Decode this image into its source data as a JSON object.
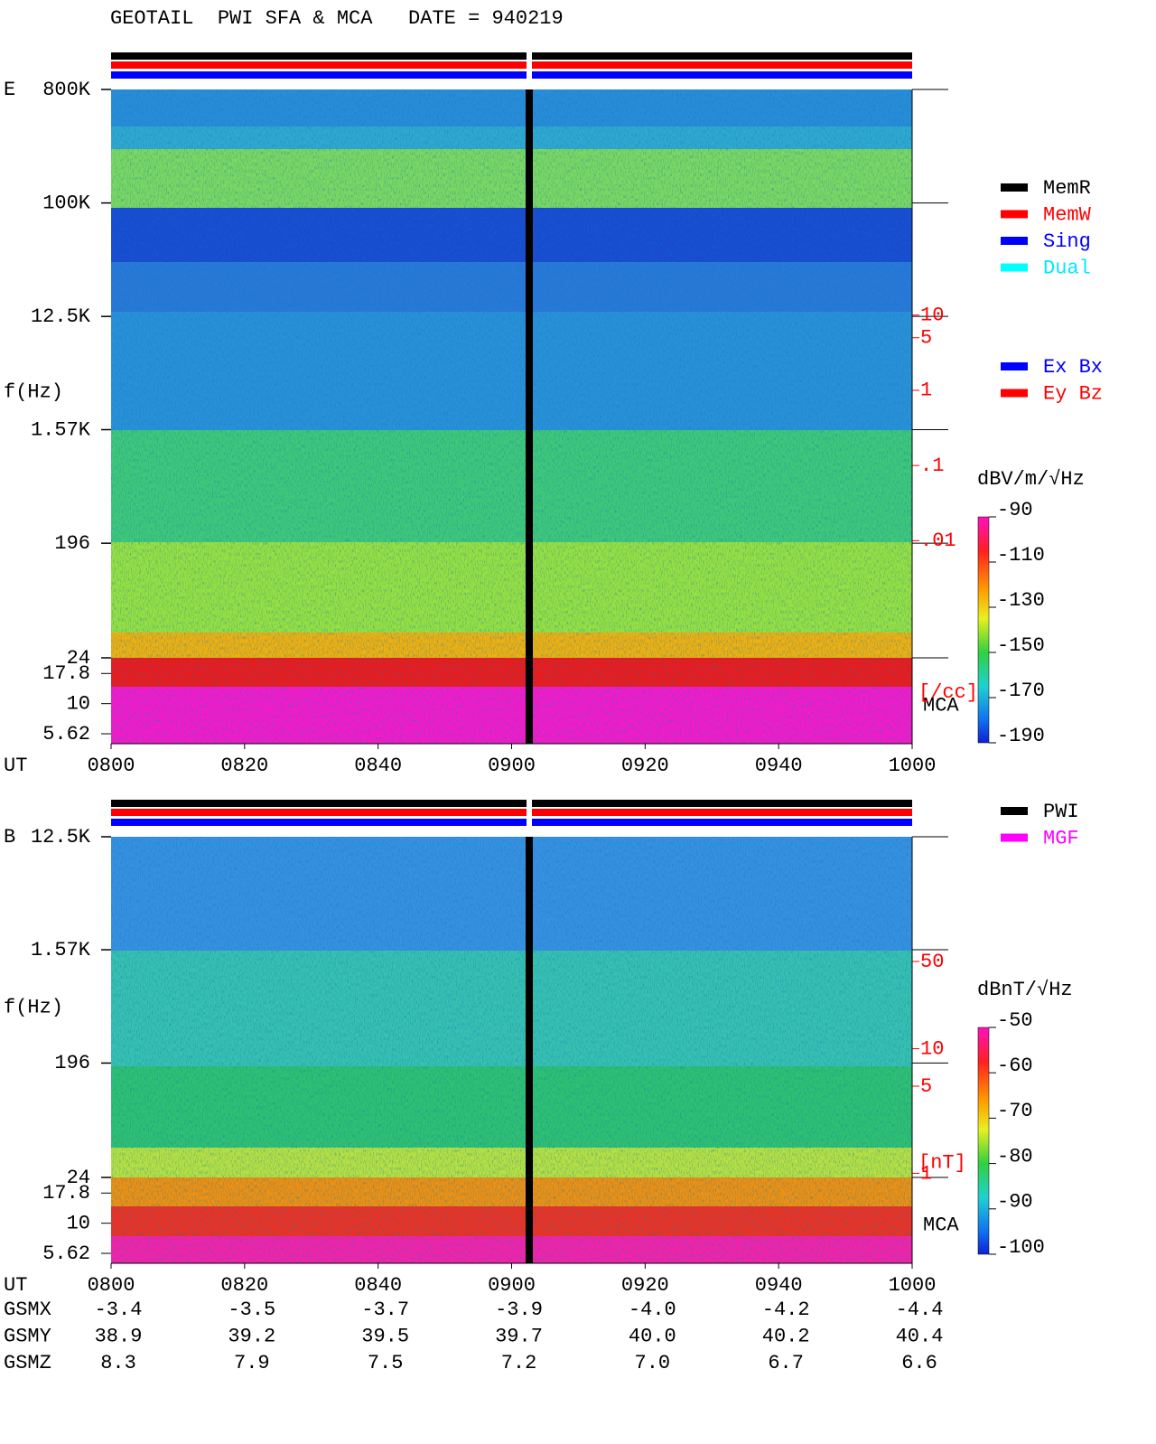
{
  "title": "GEOTAIL  PWI SFA & MCA   DATE = 940219",
  "chart_data": [
    {
      "type": "spectrogram",
      "panel_label": "E",
      "ylabel": "f(Hz)",
      "xlabel": "UT",
      "yscale": "log",
      "ylim": [
        24,
        800000
      ],
      "yticks": [
        {
          "value": 800000,
          "label": "800K"
        },
        {
          "value": 100000,
          "label": "100K"
        },
        {
          "value": 12500,
          "label": "12.5K"
        },
        {
          "value": 1570,
          "label": "1.57K"
        },
        196,
        24
      ],
      "mca_label": "MCA",
      "mca_ylim": [
        4.65,
        24
      ],
      "mca_yticks": [
        17.8,
        10,
        5.62
      ],
      "xlim": [
        0,
        120
      ],
      "xticks": [
        {
          "value": 0,
          "label": "0800"
        },
        {
          "value": 20,
          "label": "0820"
        },
        {
          "value": 40,
          "label": "0840"
        },
        {
          "value": 60,
          "label": "0900"
        },
        {
          "value": 80,
          "label": "0920"
        },
        {
          "value": 100,
          "label": "0940"
        },
        {
          "value": 120,
          "label": "1000"
        }
      ],
      "y2scale": "log",
      "y2lim": [
        2e-05,
        10000
      ],
      "y2ticks": [
        10,
        5,
        1,
        {
          "value": 0.1,
          "label": ".1"
        },
        {
          "value": 0.01,
          "label": ".01"
        }
      ],
      "y2label": "[/cc]",
      "y2color": "#ff0000",
      "colorbar_label": "dBV/m/√Hz",
      "clim": [
        -190,
        -90
      ],
      "cticks": [
        -90,
        -110,
        -130,
        -150,
        -170,
        -190
      ],
      "legend": [
        {
          "name": "MemR",
          "color": "#000000"
        },
        {
          "name": "MemW",
          "color": "#ff0000"
        },
        {
          "name": "Sing",
          "color": "#0000ff"
        },
        {
          "name": "Dual",
          "color": "#00ffff"
        }
      ],
      "components": [
        {
          "name": "Ex Bx",
          "color": "#0000ff"
        },
        {
          "name": "Ey Bz",
          "color": "#ff0000"
        }
      ]
    },
    {
      "type": "spectrogram",
      "panel_label": "B",
      "ylabel": "f(Hz)",
      "xlabel": "UT",
      "yscale": "log",
      "ylim": [
        24,
        12500
      ],
      "yticks": [
        {
          "value": 12500,
          "label": "12.5K"
        },
        {
          "value": 1570,
          "label": "1.57K"
        },
        196,
        24
      ],
      "mca_label": "MCA",
      "mca_ylim": [
        4.65,
        24
      ],
      "mca_yticks": [
        17.8,
        10,
        5.62
      ],
      "xlim": [
        0,
        120
      ],
      "xticks": [
        {
          "value": 0,
          "label": "0800"
        },
        {
          "value": 20,
          "label": "0820"
        },
        {
          "value": 40,
          "label": "0840"
        },
        {
          "value": 60,
          "label": "0900"
        },
        {
          "value": 80,
          "label": "0920"
        },
        {
          "value": 100,
          "label": "0940"
        },
        {
          "value": 120,
          "label": "1000"
        }
      ],
      "y2scale": "log",
      "y2lim": [
        0.19,
        500
      ],
      "y2ticks": [
        50,
        10,
        5,
        1
      ],
      "y2label": "[nT]",
      "y2color": "#ff0000",
      "colorbar_label": "dBnT/√Hz",
      "clim": [
        -100,
        -50
      ],
      "cticks": [
        -50,
        -60,
        -70,
        -80,
        -90,
        -100
      ],
      "legend": [
        {
          "name": "PWI",
          "color": "#000000"
        },
        {
          "name": "MGF",
          "color": "#ff00ff"
        }
      ]
    }
  ],
  "ephemeris": [
    {
      "name": "GSMX",
      "values": [
        -3.4,
        -3.5,
        -3.7,
        -3.9,
        {
          "value": -4.0,
          "label": "-4.0"
        },
        -4.2,
        -4.4
      ]
    },
    {
      "name": "GSMY",
      "values": [
        38.9,
        39.2,
        39.5,
        39.7,
        {
          "value": 40.0,
          "label": "40.0"
        },
        40.2,
        40.4
      ]
    },
    {
      "name": "GSMZ",
      "values": [
        8.3,
        7.9,
        7.5,
        7.2,
        {
          "value": 7.0,
          "label": "7.0"
        },
        6.7,
        6.6
      ]
    }
  ]
}
